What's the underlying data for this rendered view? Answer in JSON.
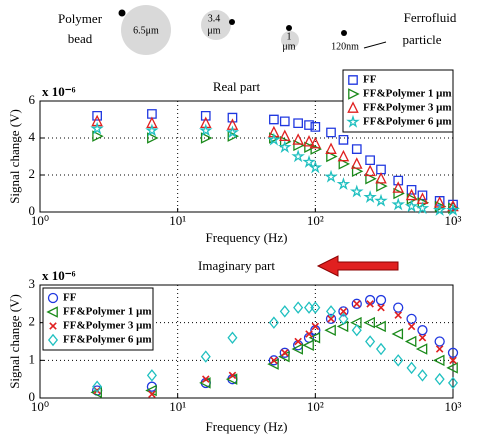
{
  "diagram": {
    "polymer_label": [
      "Polymer",
      "bead"
    ],
    "bead_sizes": [
      [
        "6.5μm"
      ],
      [
        "3.4",
        "μm"
      ],
      [
        "1",
        "μm"
      ]
    ],
    "particle_size": "120nm",
    "ferrofluid_label": [
      "Ferrofluid",
      "particle"
    ]
  },
  "chart_data": [
    {
      "type": "scatter",
      "title": "Real part",
      "x_label": "Frequency (Hz)",
      "y_label": "Signal change (V)",
      "y_multiplier": "x 10⁻⁶",
      "xscale": "log",
      "xlim": [
        1,
        1000
      ],
      "xticks": [
        {
          "value": 1,
          "label": "10⁰"
        },
        {
          "value": 10,
          "label": "10¹"
        },
        {
          "value": 100,
          "label": "10²"
        },
        {
          "value": 1000,
          "label": "10³"
        }
      ],
      "ylim": [
        0,
        6
      ],
      "yticks": [
        0,
        2,
        4,
        6
      ],
      "grid": true,
      "legend": "upper right",
      "x": [
        2.6,
        6.5,
        16,
        25,
        50,
        60,
        75,
        90,
        100,
        130,
        160,
        200,
        250,
        300,
        400,
        500,
        600,
        800,
        1000
      ],
      "series": [
        {
          "name": "FF",
          "color": "#2038e0",
          "marker": "square",
          "values": [
            5.2,
            5.3,
            5.2,
            5.1,
            5.0,
            4.9,
            4.8,
            4.7,
            4.6,
            4.3,
            3.9,
            3.4,
            2.8,
            2.3,
            1.7,
            1.2,
            0.9,
            0.6,
            0.4
          ]
        },
        {
          "name": "FF&Polymer 1 μm",
          "color": "#1a8a1a",
          "marker": "triangle-right",
          "values": [
            4.1,
            4.0,
            4.0,
            4.1,
            4.0,
            3.8,
            3.6,
            3.5,
            3.4,
            3.0,
            2.6,
            2.2,
            1.8,
            1.4,
            1.0,
            0.7,
            0.5,
            0.3,
            0.2
          ]
        },
        {
          "name": "FF&Polymer 3 μm",
          "color": "#e02020",
          "marker": "triangle-up",
          "values": [
            4.9,
            4.8,
            4.8,
            4.7,
            4.3,
            4.1,
            3.9,
            3.8,
            3.7,
            3.4,
            3.0,
            2.6,
            2.2,
            1.8,
            1.3,
            0.9,
            0.7,
            0.5,
            0.3
          ]
        },
        {
          "name": "FF&Polymer 6 μm",
          "color": "#20c0c0",
          "marker": "star",
          "values": [
            4.5,
            4.4,
            4.4,
            4.3,
            3.9,
            3.5,
            3.0,
            2.7,
            2.4,
            1.9,
            1.5,
            1.1,
            0.8,
            0.6,
            0.4,
            0.3,
            0.2,
            0.1,
            0.1
          ]
        }
      ]
    },
    {
      "type": "scatter",
      "title": "Imaginary part",
      "x_label": "Frequency (Hz)",
      "y_label": "Signal change (V)",
      "y_multiplier": "x 10⁻⁶",
      "xscale": "log",
      "xlim": [
        1,
        1000
      ],
      "xticks": [
        {
          "value": 1,
          "label": "10⁰"
        },
        {
          "value": 10,
          "label": "10¹"
        },
        {
          "value": 100,
          "label": "10²"
        },
        {
          "value": 1000,
          "label": "10³"
        }
      ],
      "ylim": [
        0,
        3
      ],
      "yticks": [
        0,
        1,
        2,
        3
      ],
      "grid": true,
      "legend": "upper left",
      "x": [
        2.6,
        6.5,
        16,
        25,
        50,
        60,
        75,
        90,
        100,
        130,
        160,
        200,
        250,
        300,
        400,
        500,
        600,
        800,
        1000
      ],
      "series": [
        {
          "name": "FF",
          "color": "#2038e0",
          "marker": "circle",
          "values": [
            0.2,
            0.3,
            0.4,
            0.5,
            1.0,
            1.2,
            1.4,
            1.6,
            1.8,
            2.1,
            2.3,
            2.5,
            2.6,
            2.6,
            2.4,
            2.1,
            1.8,
            1.5,
            1.2
          ]
        },
        {
          "name": "FF&Polymer 1 μm",
          "color": "#1a8a1a",
          "marker": "triangle-left",
          "values": [
            0.15,
            0.2,
            0.4,
            0.5,
            0.9,
            1.1,
            1.3,
            1.4,
            1.6,
            1.8,
            1.9,
            2.0,
            2.0,
            1.9,
            1.7,
            1.5,
            1.3,
            1.0,
            0.8
          ]
        },
        {
          "name": "FF&Polymer 3 μm",
          "color": "#e02020",
          "marker": "x",
          "values": [
            0.2,
            0.1,
            0.5,
            0.6,
            1.0,
            1.2,
            1.5,
            1.7,
            1.9,
            2.1,
            2.3,
            2.5,
            2.5,
            2.4,
            2.2,
            1.9,
            1.6,
            1.3,
            1.0
          ]
        },
        {
          "name": "FF&Polymer 6 μm",
          "color": "#20c0c0",
          "marker": "diamond",
          "values": [
            0.3,
            0.6,
            1.1,
            1.6,
            2.0,
            2.3,
            2.4,
            2.4,
            2.4,
            2.3,
            2.1,
            1.8,
            1.5,
            1.3,
            1.0,
            0.8,
            0.6,
            0.5,
            0.4
          ]
        }
      ]
    }
  ]
}
